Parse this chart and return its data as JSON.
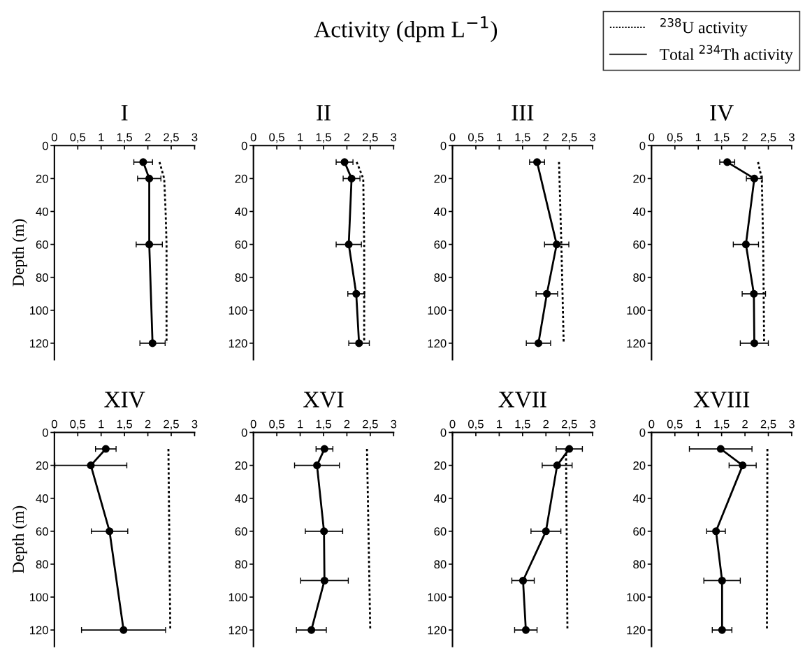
{
  "chart_data": [
    {
      "type": "line",
      "title": "I",
      "ylabel": "Depth (m)",
      "annotations": [
        "Activity (dpm L$^{−1}$)"
      ],
      "legend": "top right",
      "xlim": [
        0,
        3
      ],
      "xticks": [
        0,
        {
          "value": 0.5,
          "label": "0,5"
        },
        1,
        {
          "value": 1.5,
          "label": "1,5"
        },
        2,
        {
          "value": 2.5,
          "label": "2,5"
        },
        3
      ],
      "ylim": [
        130,
        0
      ],
      "yticks": [
        0,
        20,
        40,
        60,
        80,
        100,
        120
      ],
      "series": [
        {
          "name": "$^{238}$U activity",
          "color": "#000000",
          "line_style": "dotted",
          "marker": "none",
          "values": [
            10,
            20,
            40,
            60,
            120
          ],
          "x": [
            2.25,
            2.35,
            2.38,
            2.4,
            2.4
          ]
        },
        {
          "name": "Total $^{234}$Th activity",
          "color": "#000000",
          "line_style": "solid",
          "marker": "circle",
          "values": [
            10,
            20,
            60,
            120
          ],
          "x": [
            1.9,
            2.03,
            2.03,
            2.1
          ],
          "xerrors": [
            0.2,
            0.25,
            0.28,
            0.27
          ]
        }
      ]
    },
    {
      "type": "line",
      "title": "II",
      "xlim": [
        0,
        3
      ],
      "xticks": [
        0,
        {
          "value": 0.5,
          "label": "0,5"
        },
        1,
        {
          "value": 1.5,
          "label": "1,5"
        },
        2,
        {
          "value": 2.5,
          "label": "2,5"
        },
        3
      ],
      "ylim": [
        130,
        0
      ],
      "yticks": [
        0,
        20,
        40,
        60,
        80,
        100,
        120
      ],
      "series": [
        {
          "color": "#000000",
          "line_style": "dotted",
          "marker": "none",
          "values": [
            10,
            20,
            60,
            120
          ],
          "x": [
            2.21,
            2.35,
            2.37,
            2.37
          ]
        },
        {
          "color": "#000000",
          "line_style": "solid",
          "marker": "circle",
          "values": [
            10,
            20,
            60,
            90,
            120
          ],
          "x": [
            1.95,
            2.1,
            2.04,
            2.2,
            2.26
          ],
          "xerrors": [
            0.18,
            0.18,
            0.27,
            0.18,
            0.22
          ]
        }
      ]
    },
    {
      "type": "line",
      "title": "III",
      "xlim": [
        0,
        3
      ],
      "xticks": [
        0,
        {
          "value": 0.5,
          "label": "0,5"
        },
        1,
        {
          "value": 1.5,
          "label": "1,5"
        },
        2,
        {
          "value": 2.5,
          "label": "2,5"
        },
        3
      ],
      "ylim": [
        130,
        0
      ],
      "yticks": [
        0,
        20,
        40,
        60,
        80,
        100,
        120
      ],
      "series": [
        {
          "color": "#000000",
          "line_style": "dotted",
          "marker": "none",
          "values": [
            10,
            60,
            120
          ],
          "x": [
            2.28,
            2.33,
            2.38
          ]
        },
        {
          "color": "#000000",
          "line_style": "solid",
          "marker": "circle",
          "values": [
            10,
            60,
            90,
            120
          ],
          "x": [
            1.81,
            2.23,
            2.02,
            1.84
          ],
          "xerrors": [
            0.16,
            0.26,
            0.23,
            0.26
          ]
        }
      ]
    },
    {
      "type": "line",
      "title": "IV",
      "xlim": [
        0,
        3
      ],
      "xticks": [
        0,
        {
          "value": 0.5,
          "label": "0,5"
        },
        1,
        {
          "value": 1.5,
          "label": "1,5"
        },
        2,
        {
          "value": 2.5,
          "label": "2,5"
        },
        3
      ],
      "ylim": [
        130,
        0
      ],
      "yticks": [
        0,
        20,
        40,
        60,
        80,
        100,
        120
      ],
      "series": [
        {
          "color": "#000000",
          "line_style": "dotted",
          "marker": "none",
          "values": [
            10,
            20,
            60,
            120
          ],
          "x": [
            2.28,
            2.36,
            2.39,
            2.41
          ]
        },
        {
          "color": "#000000",
          "line_style": "solid",
          "marker": "circle",
          "values": [
            10,
            20,
            60,
            90,
            120
          ],
          "x": [
            1.62,
            2.2,
            2.02,
            2.19,
            2.2
          ],
          "xerrors": [
            0.16,
            0.17,
            0.27,
            0.25,
            0.3
          ]
        }
      ]
    },
    {
      "type": "line",
      "title": "XIV",
      "ylabel": "Depth (m)",
      "xlim": [
        0,
        3
      ],
      "xticks": [
        0,
        {
          "value": 0.5,
          "label": "0,5"
        },
        1,
        {
          "value": 1.5,
          "label": "1,5"
        },
        2,
        {
          "value": 2.5,
          "label": "2,5"
        },
        3
      ],
      "ylim": [
        130,
        0
      ],
      "yticks": [
        0,
        20,
        40,
        60,
        80,
        100,
        120
      ],
      "series": [
        {
          "color": "#000000",
          "line_style": "dotted",
          "marker": "none",
          "values": [
            10,
            120
          ],
          "x": [
            2.44,
            2.48
          ]
        },
        {
          "color": "#000000",
          "line_style": "solid",
          "marker": "circle",
          "values": [
            10,
            20,
            60,
            120
          ],
          "x": [
            1.1,
            0.78,
            1.18,
            1.48
          ],
          "xerrors": [
            0.22,
            0.77,
            0.39,
            0.9
          ]
        }
      ]
    },
    {
      "type": "line",
      "title": "XVI",
      "xlim": [
        0,
        3
      ],
      "xticks": [
        0,
        {
          "value": 0.5,
          "label": "0,5"
        },
        1,
        {
          "value": 1.5,
          "label": "1,5"
        },
        2,
        {
          "value": 2.5,
          "label": "2,5"
        },
        3
      ],
      "ylim": [
        130,
        0
      ],
      "yticks": [
        0,
        20,
        40,
        60,
        80,
        100,
        120
      ],
      "series": [
        {
          "color": "#000000",
          "line_style": "dotted",
          "marker": "none",
          "values": [
            10,
            120
          ],
          "x": [
            2.43,
            2.5
          ]
        },
        {
          "color": "#000000",
          "line_style": "solid",
          "marker": "circle",
          "values": [
            10,
            20,
            60,
            90,
            120
          ],
          "x": [
            1.52,
            1.36,
            1.51,
            1.52,
            1.24
          ],
          "xerrors": [
            0.18,
            0.48,
            0.4,
            0.51,
            0.32
          ]
        }
      ]
    },
    {
      "type": "line",
      "title": "XVII",
      "xlim": [
        0,
        3
      ],
      "xticks": [
        0,
        {
          "value": 0.5,
          "label": "0,5"
        },
        1,
        {
          "value": 1.5,
          "label": "1,5"
        },
        2,
        {
          "value": 2.5,
          "label": "2,5"
        },
        3
      ],
      "ylim": [
        130,
        0
      ],
      "yticks": [
        0,
        20,
        40,
        60,
        80,
        100,
        120
      ],
      "series": [
        {
          "color": "#000000",
          "line_style": "dotted",
          "marker": "none",
          "values": [
            10,
            120
          ],
          "x": [
            2.43,
            2.46
          ]
        },
        {
          "color": "#000000",
          "line_style": "solid",
          "marker": "circle",
          "values": [
            10,
            20,
            60,
            90,
            120
          ],
          "x": [
            2.5,
            2.24,
            2.0,
            1.51,
            1.57
          ],
          "xerrors": [
            0.28,
            0.32,
            0.32,
            0.24,
            0.24
          ]
        }
      ]
    },
    {
      "type": "line",
      "title": "XVIII",
      "xlim": [
        0,
        3
      ],
      "xticks": [
        0,
        {
          "value": 0.5,
          "label": "0,5"
        },
        1,
        {
          "value": 1.5,
          "label": "1,5"
        },
        2,
        {
          "value": 2.5,
          "label": "2,5"
        },
        3
      ],
      "ylim": [
        130,
        0
      ],
      "yticks": [
        0,
        20,
        40,
        60,
        80,
        100,
        120
      ],
      "series": [
        {
          "color": "#000000",
          "line_style": "dotted",
          "marker": "none",
          "values": [
            10,
            120
          ],
          "x": [
            2.48,
            2.47
          ]
        },
        {
          "color": "#000000",
          "line_style": "solid",
          "marker": "circle",
          "values": [
            10,
            20,
            60,
            90,
            120
          ],
          "x": [
            1.48,
            1.95,
            1.38,
            1.51,
            1.51
          ],
          "xerrors": [
            0.67,
            0.29,
            0.2,
            0.39,
            0.21
          ]
        }
      ]
    }
  ]
}
